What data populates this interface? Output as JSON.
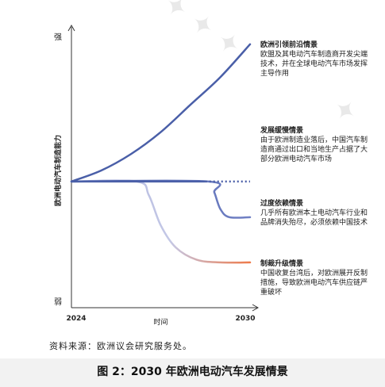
{
  "chart_data": {
    "type": "line",
    "title": "图 2：2030 年欧洲电动汽车发展情景",
    "source": "资料来源：欧洲议会研究服务处。",
    "y_axis": {
      "label": "欧洲电动汽车制造能力",
      "top_label": "强",
      "bottom_label": "弱"
    },
    "x_axis": {
      "label": "时间",
      "start": "2024",
      "end": "2030",
      "range": [
        2024,
        2030
      ]
    },
    "y_range": [
      0,
      100
    ],
    "series": [
      {
        "name": "欧洲引领前沿情景",
        "description": "欧盟及其电动汽车制造商开发尖端技术，并在全球电动汽车市场发挥主导作用",
        "color": "#4a5fa8",
        "x": [
          2024,
          2025,
          2026,
          2027,
          2028,
          2029,
          2030
        ],
        "y": [
          46,
          50,
          56,
          64,
          74,
          84,
          96
        ]
      },
      {
        "name": "发展缓慢情景",
        "description": "由于欧洲制造业落后，中国汽车制造商通过出口和当地生产占据了大部分欧洲电动汽车市场",
        "color": "#4a5fa8",
        "x": [
          2024,
          2025,
          2026,
          2027,
          2028,
          2029,
          2030
        ],
        "y": [
          46,
          46,
          46,
          46,
          46,
          46,
          46
        ],
        "dashed_from": 2028.5
      },
      {
        "name": "过度依赖情景",
        "description": "几乎所有欧洲本土电动汽车行业和品牌消失殆尽，必须依赖中国技术",
        "color": "#7080c4",
        "x": [
          2024,
          2028.6,
          2028.8,
          2029.0,
          2029.3,
          2030
        ],
        "y": [
          46,
          46,
          42,
          36,
          33,
          33
        ]
      },
      {
        "name": "制裁升级情景",
        "description": "中国收复台湾后，对欧洲展开反制措施，导致欧洲电动汽车供应链严重破坏",
        "color": "#a8b0dc",
        "end_color": "#ee7a4a",
        "x": [
          2024,
          2026.2,
          2026.6,
          2027.0,
          2027.5,
          2028.2,
          2029,
          2030
        ],
        "y": [
          46,
          46,
          41,
          30,
          22,
          17.5,
          16.5,
          16.5
        ]
      }
    ]
  }
}
